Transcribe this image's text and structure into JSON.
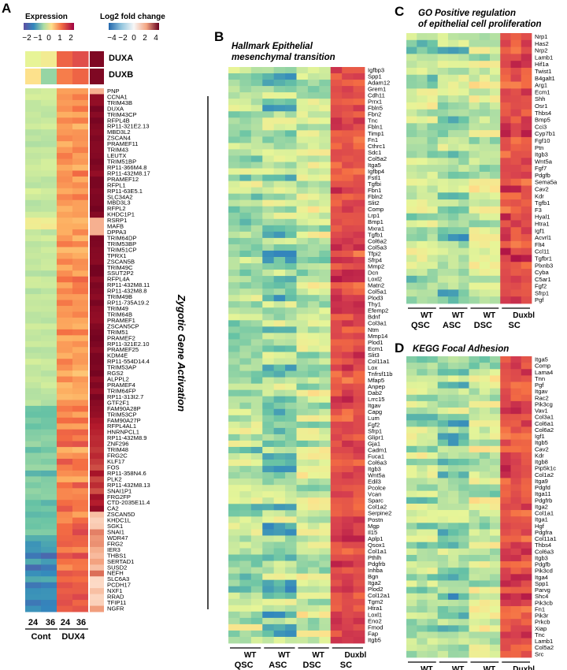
{
  "figure": {
    "colors": {
      "expression_palette": [
        "#5e4fa2",
        "#3288bd",
        "#66c2a5",
        "#abdda4",
        "#e6f598",
        "#fee08b",
        "#fdae61",
        "#f46d43",
        "#d53e4f",
        "#9e0142"
      ],
      "logfc_palette": [
        "#2166ac",
        "#4393c3",
        "#92c5de",
        "#f7f7f7",
        "#fddbc7",
        "#f4a582",
        "#d6604d",
        "#b2182b",
        "#67001f"
      ],
      "line": "#000000"
    },
    "panel_a": {
      "letter": "A",
      "legend_expression": {
        "title": "Expression",
        "ticks": [
          "−2",
          "−1",
          "0",
          "1",
          "2"
        ],
        "range": [
          -2,
          2
        ]
      },
      "legend_logfc": {
        "title": "Log2 fold change",
        "ticks": [
          "−4",
          "−2",
          "0",
          "2",
          "4"
        ],
        "range": [
          -4,
          4
        ]
      },
      "duxa_label": "DUXA",
      "duxb_label": "DUXB",
      "vertical_label": "Zygotic Gene Activation",
      "time_labels": [
        "24",
        "36",
        "24",
        "36"
      ],
      "group_labels": [
        "Cont",
        "DUX4"
      ]
    },
    "panel_b": {
      "letter": "B",
      "title_line1": "Hallmark Epithelial",
      "title_line2": "mesenchymal transition",
      "col_labels_top": [
        "WT",
        "WT",
        "WT",
        ""
      ],
      "col_labels_bottom": [
        "QSC",
        "ASC",
        "DSC",
        "SC"
      ],
      "duxbl_label": "Duxbl"
    },
    "panel_c": {
      "letter": "C",
      "title_line1": "GO Positive regulation",
      "title_line2": "of epithelial cell proliferation",
      "col_labels_top": [
        "WT",
        "WT",
        "WT",
        ""
      ],
      "col_labels_bottom": [
        "QSC",
        "ASC",
        "DSC",
        "SC"
      ],
      "duxbl_label": "Duxbl"
    },
    "panel_d": {
      "letter": "D",
      "title": "KEGG Focal Adhesion",
      "col_labels_top": [
        "WT",
        "WT",
        "WT",
        ""
      ],
      "col_labels_bottom": [
        "QSC",
        "ASC",
        "DSC",
        "SC"
      ],
      "duxbl_label": "Duxbl"
    }
  },
  "chart_data": [
    {
      "type": "heatmap",
      "panel": "A",
      "columns": [
        "Cont 24",
        "Cont 36",
        "DUX4 24",
        "DUX4 36",
        "Log2 fold change"
      ],
      "top_rows": [
        "DUXA",
        "DUXB"
      ],
      "rows": [
        "PNP",
        "CCNA1",
        "TRIM43B",
        "DUXA",
        "TRIM43CP",
        "RFPL4B",
        "RP11-321E2.13",
        "MBD3L2",
        "ZSCAN4",
        "PRAMEF11",
        "TRIM43",
        "LEUTX",
        "TRIM51BP",
        "RP11-366M4.8",
        "RP11-432M8.17",
        "PRAMEF12",
        "RFPL1",
        "RP11-63E5.1",
        "SLC34A2",
        "MBD3L3",
        "RFPL2",
        "KHDC1P1",
        "RSRP1",
        "MAFB",
        "DPPA3",
        "TRIM64DP",
        "TRIM53BP",
        "TRIM51CP",
        "TPRX1",
        "ZSCAN5B",
        "TRIM49C",
        "SSUT2P2",
        "RFPL4A",
        "RP11-432M8.11",
        "RP11-432M8.8",
        "TRIM49B",
        "RP11-735A19.2",
        "TRIM49",
        "TRIM64B",
        "PRAMEF1",
        "ZSCAN5CP",
        "TRIM51",
        "PRAMEF2",
        "RP11-321E2.10",
        "PRAMEF25",
        "KDM4E",
        "RP11-554D14.4",
        "TRIM53AP",
        "RGS2",
        "ALPPL2",
        "PRAMEF4",
        "TRIM64FP",
        "RP11-313I2.7",
        "GTF2F1",
        "FAM90A28P",
        "TRIM53CP",
        "FAM90A27P",
        "RFPL4AL1",
        "HNRNPCL1",
        "RP11-432M8.9",
        "ZNF296",
        "TRIM48",
        "FRG2C",
        "KLF17",
        "FOS",
        "RP11-358N4.6",
        "PLK2",
        "RP11-432M8.13",
        "SNAI1P1",
        "FRG2FP",
        "CTD-2035E11.4",
        "CA2",
        "ZSCAN5D",
        "KHDC1L",
        "SGK1",
        "SNAI1",
        "WDR47",
        "FRG2",
        "IER3",
        "THBS1",
        "SERTAD1",
        "SUSD2",
        "NEFH",
        "SLC6A3",
        "PCDH17",
        "NXF1",
        "RRAD",
        "TFIP11",
        "NGFR"
      ]
    },
    {
      "type": "heatmap",
      "panel": "B",
      "title": "Hallmark Epithelial mesenchymal transition",
      "column_groups": [
        "WT QSC",
        "WT ASC",
        "WT DSC",
        "Duxbl SC"
      ],
      "replicates_per_group": 3,
      "rows": [
        "Igfbp3",
        "Spp1",
        "Adam12",
        "Grem1",
        "Cdh11",
        "Prrx1",
        "Fbln5",
        "Fbn2",
        "Tnc",
        "Fbln1",
        "Timp1",
        "Fn1",
        "Cthrc1",
        "Sdc1",
        "Col5a2",
        "Itga5",
        "Igfbp4",
        "Fstl1",
        "Tgfbi",
        "Fbn1",
        "Fbln2",
        "Slit2",
        "Comp",
        "Lrp1",
        "Bmp1",
        "Mxra1",
        "Tgfb1",
        "Col6a2",
        "Col5a3",
        "Tfpi2",
        "Sfrp4",
        "Mmp2",
        "Dcn",
        "Loxl2",
        "Matn2",
        "Col5a1",
        "Plod3",
        "Thy1",
        "Efemp2",
        "Bdnf",
        "Col3a1",
        "Ntm",
        "Mmp14",
        "Plod1",
        "Ecm1",
        "Slit3",
        "Col11a1",
        "Lox",
        "Tnfrsf11b",
        "Mfap5",
        "Anpep",
        "Dab2",
        "Lrrc15",
        "Itgav",
        "Capg",
        "Lum",
        "Fgf2",
        "Sfrp1",
        "Glipr1",
        "Gja1",
        "Cadm1",
        "Fuca1",
        "Col6a3",
        "Itgb3",
        "Wnt5a",
        "Edil3",
        "Pcolce",
        "Vcan",
        "Sparc",
        "Col1a2",
        "Serpine2",
        "Postn",
        "Mgp",
        "Il15",
        "Aplp1",
        "Qsox1",
        "Col1a1",
        "Pthlh",
        "Pdgfrb",
        "Inhba",
        "Bgn",
        "Itga2",
        "Plod2",
        "Col12a1",
        "Tgm2",
        "Htra1",
        "Loxl1",
        "Eno2",
        "Fmod",
        "Fap",
        "Itgb5"
      ]
    },
    {
      "type": "heatmap",
      "panel": "C",
      "title": "GO Positive regulation of epithelial cell proliferation",
      "column_groups": [
        "WT QSC",
        "WT ASC",
        "WT DSC",
        "Duxbl SC"
      ],
      "replicates_per_group": 3,
      "rows": [
        "Nrp1",
        "Has2",
        "Nrp2",
        "Lamb1",
        "Hif1a",
        "Twist1",
        "B4galt1",
        "Arg1",
        "Ecm1",
        "Shh",
        "Osr1",
        "Thbs4",
        "Bmp5",
        "Cci3",
        "Cyp7b1",
        "Fgf10",
        "Ptn",
        "Itgb3",
        "Wnt5a",
        "Fgf7",
        "Pdgfb",
        "Sema5a",
        "Cav2",
        "Kdr",
        "Tgfb1",
        "F3",
        "Hyal1",
        "Htra1",
        "Igf1",
        "Acvrl1",
        "Flt4",
        "Ccl11",
        "Tgfbr1",
        "Plxnb3",
        "Cyba",
        "C5ar1",
        "Fgf2",
        "Sfrp1",
        "Pgf"
      ]
    },
    {
      "type": "heatmap",
      "panel": "D",
      "title": "KEGG Focal Adhesion",
      "column_groups": [
        "WT QSC",
        "WT ASC",
        "WT DSC",
        "Duxbl SC"
      ],
      "replicates_per_group": 3,
      "rows": [
        "Itga5",
        "Comp",
        "Lama4",
        "Tnn",
        "Pgf",
        "Itgav",
        "Rac2",
        "Pik3cg",
        "Vav1",
        "Col3a1",
        "Col6a1",
        "Col6a2",
        "Igf1",
        "Itgb5",
        "Cav2",
        "Kdr",
        "Itgb8",
        "Pip5k1c",
        "Col1a2",
        "Itga9",
        "Pdgfd",
        "Itga11",
        "Pdgfrb",
        "Itga2",
        "Col1a1",
        "Itga1",
        "Hgf",
        "Pdgfra",
        "Col11a1",
        "Thbs4",
        "Col6a3",
        "Itgb3",
        "Pdgfb",
        "Pik3cd",
        "Itga4",
        "Spp1",
        "Parvg",
        "Shc4",
        "Pik3cb",
        "Fn1",
        "Pik3r",
        "Prkcb",
        "Xiap",
        "Tnc",
        "Lamb1",
        "Col5a2",
        "Src"
      ]
    }
  ]
}
